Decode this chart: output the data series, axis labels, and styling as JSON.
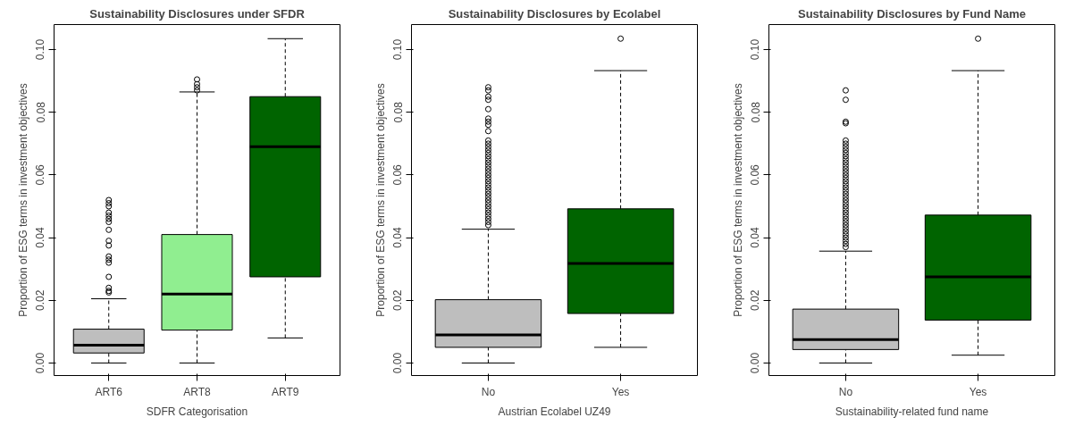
{
  "chart_data": [
    {
      "type": "box",
      "title": "Sustainability Disclosures under SFDR",
      "xlabel": "SDFR Categorisation",
      "ylabel": "Proportion of ESG terms in investment objectives",
      "categories": [
        "ART6",
        "ART8",
        "ART9"
      ],
      "colors": [
        "#bebebe",
        "#90ee90",
        "#006400"
      ],
      "ylim": [
        -0.004,
        0.108
      ],
      "yticks": [
        {
          "value": 0,
          "label": "0.00"
        },
        {
          "value": 0.02,
          "label": "0.02"
        },
        {
          "value": 0.04,
          "label": "0.04"
        },
        {
          "value": 0.06,
          "label": "0.06"
        },
        {
          "value": 0.08,
          "label": "0.08"
        },
        {
          "value": 0.1,
          "label": "0.10"
        }
      ],
      "grid": false,
      "boxes": [
        {
          "low": 0,
          "q1": 0.0032,
          "median": 0.0057,
          "q3": 0.0108,
          "high": 0.0205,
          "outliers": [
            0.0225,
            0.023,
            0.024,
            0.0275,
            0.032,
            0.033,
            0.034,
            0.0375,
            0.039,
            0.0425,
            0.045,
            0.046,
            0.047,
            0.048,
            0.05,
            0.051,
            0.052
          ]
        },
        {
          "low": 0,
          "q1": 0.0105,
          "median": 0.022,
          "q3": 0.041,
          "high": 0.0865,
          "outliers": [
            0.087,
            0.088,
            0.089,
            0.0905
          ]
        },
        {
          "low": 0.008,
          "q1": 0.0275,
          "median": 0.069,
          "q3": 0.085,
          "high": 0.1035
        }
      ]
    },
    {
      "type": "box",
      "title": "Sustainability Disclosures by Ecolabel",
      "xlabel": "Austrian Ecolabel UZ49",
      "ylabel": "Proportion of ESG terms in investment objectives",
      "categories": [
        "No",
        "Yes"
      ],
      "colors": [
        "#bebebe",
        "#006400"
      ],
      "ylim": [
        -0.004,
        0.108
      ],
      "yticks": [
        {
          "value": 0,
          "label": "0.00"
        },
        {
          "value": 0.02,
          "label": "0.02"
        },
        {
          "value": 0.04,
          "label": "0.04"
        },
        {
          "value": 0.06,
          "label": "0.06"
        },
        {
          "value": 0.08,
          "label": "0.08"
        },
        {
          "value": 0.1,
          "label": "0.10"
        }
      ],
      "grid": false,
      "boxes": [
        {
          "low": 0,
          "q1": 0.005,
          "median": 0.009,
          "q3": 0.0202,
          "high": 0.0427,
          "outliers": [
            0.044,
            0.045,
            0.046,
            0.047,
            0.048,
            0.049,
            0.05,
            0.051,
            0.052,
            0.053,
            0.054,
            0.055,
            0.056,
            0.057,
            0.058,
            0.059,
            0.06,
            0.061,
            0.062,
            0.063,
            0.064,
            0.065,
            0.066,
            0.067,
            0.068,
            0.069,
            0.07,
            0.071,
            0.074,
            0.076,
            0.077,
            0.078,
            0.081,
            0.084,
            0.085,
            0.087,
            0.088
          ]
        },
        {
          "low": 0.005,
          "q1": 0.0158,
          "median": 0.0318,
          "q3": 0.0492,
          "high": 0.0933,
          "outliers": [
            0.1035
          ]
        }
      ]
    },
    {
      "type": "box",
      "title": "Sustainability Disclosures by Fund Name",
      "xlabel": "Sustainability-related fund name",
      "ylabel": "Proportion of ESG terms in investment objectives",
      "categories": [
        "No",
        "Yes"
      ],
      "colors": [
        "#bebebe",
        "#006400"
      ],
      "ylim": [
        -0.004,
        0.108
      ],
      "yticks": [
        {
          "value": 0,
          "label": "0.00"
        },
        {
          "value": 0.02,
          "label": "0.02"
        },
        {
          "value": 0.04,
          "label": "0.04"
        },
        {
          "value": 0.06,
          "label": "0.06"
        },
        {
          "value": 0.08,
          "label": "0.08"
        },
        {
          "value": 0.1,
          "label": "0.10"
        }
      ],
      "grid": false,
      "boxes": [
        {
          "low": 0,
          "q1": 0.0043,
          "median": 0.0075,
          "q3": 0.0172,
          "high": 0.0357,
          "outliers": [
            0.037,
            0.038,
            0.039,
            0.04,
            0.041,
            0.042,
            0.043,
            0.044,
            0.045,
            0.046,
            0.047,
            0.048,
            0.049,
            0.05,
            0.051,
            0.052,
            0.053,
            0.054,
            0.055,
            0.056,
            0.057,
            0.058,
            0.059,
            0.06,
            0.061,
            0.062,
            0.063,
            0.064,
            0.065,
            0.066,
            0.067,
            0.068,
            0.069,
            0.07,
            0.071,
            0.0765,
            0.077,
            0.084,
            0.087
          ]
        },
        {
          "low": 0.0025,
          "q1": 0.0137,
          "median": 0.0275,
          "q3": 0.0472,
          "high": 0.0933,
          "outliers": [
            0.1035
          ]
        }
      ]
    }
  ]
}
